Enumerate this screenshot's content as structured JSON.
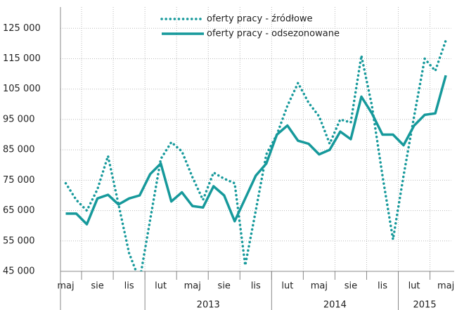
{
  "chart_data": {
    "type": "line",
    "categories": [
      "maj",
      null,
      null,
      "sie",
      null,
      null,
      "lis",
      null,
      null,
      "lut",
      null,
      null,
      "maj",
      null,
      null,
      "sie",
      null,
      null,
      "lis",
      null,
      null,
      "lut",
      null,
      null,
      "maj",
      null,
      null,
      "sie",
      null,
      null,
      "lis",
      null,
      null,
      "lut",
      null,
      null,
      "maj"
    ],
    "groups": [
      {
        "label": null,
        "count": 8
      },
      {
        "label": "2013",
        "count": 12
      },
      {
        "label": "2014",
        "count": 12
      },
      {
        "label": "2015",
        "count": 5
      }
    ],
    "series": [
      {
        "name": "oferty pracy  - źródłowe",
        "color": "#16999b",
        "style": "dotted",
        "values": [
          74000,
          68500,
          65000,
          72000,
          83000,
          67000,
          51000,
          42000,
          62000,
          82000,
          87500,
          84500,
          76000,
          68500,
          77500,
          75500,
          74000,
          47000,
          65000,
          83500,
          90000,
          99500,
          107000,
          100500,
          96000,
          87000,
          95000,
          94000,
          116000,
          99500,
          76500,
          55500,
          76500,
          96000,
          115000,
          111000,
          121000
        ]
      },
      {
        "name": "oferty pracy  - odsezonowane",
        "color": "#16999b",
        "style": "solid",
        "values": [
          64000,
          64000,
          60500,
          69000,
          70200,
          67000,
          69000,
          70000,
          77000,
          80500,
          68000,
          71000,
          66500,
          66000,
          73000,
          70000,
          61500,
          69000,
          76500,
          80500,
          90000,
          93000,
          88000,
          87000,
          83500,
          85000,
          91000,
          88500,
          102500,
          97000,
          90000,
          90000,
          86500,
          93000,
          96500,
          97000,
          109500
        ]
      }
    ],
    "ylim": [
      45000,
      132000
    ],
    "yticks": [
      {
        "value": 45000,
        "label": "45 000"
      },
      {
        "value": 55000,
        "label": "55 000"
      },
      {
        "value": 65000,
        "label": "65 000"
      },
      {
        "value": 75000,
        "label": "75 000"
      },
      {
        "value": 85000,
        "label": "85 000"
      },
      {
        "value": 95000,
        "label": "95 000"
      },
      {
        "value": 105000,
        "label": "105 000"
      },
      {
        "value": 115000,
        "label": "115 000"
      },
      {
        "value": 125000,
        "label": "125 000"
      }
    ],
    "grid": true,
    "legend": "top"
  }
}
